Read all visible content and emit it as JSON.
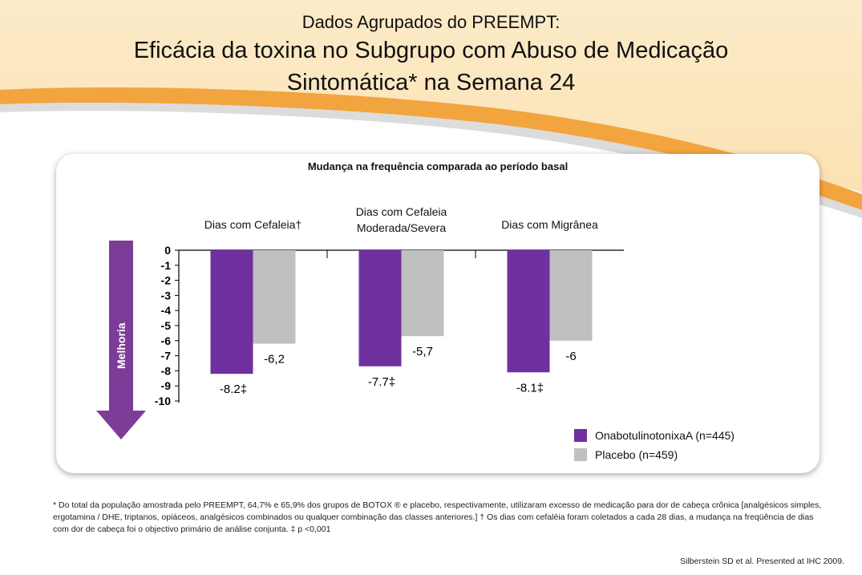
{
  "slide": {
    "pretitle": "Dados Agrupados do PREEMPT:",
    "title_line1": "Eficácia da toxina  no Subgrupo com Abuso de Medicação",
    "title_line2": "Sintomática* na Semana 24",
    "footnote": "* Do total da população amostrada pelo PREEMPT, 64,7% e 65,9% dos grupos de BOTOX ® e placebo, respectivamente, utilizaram excesso de medicação para dor de cabeça crônica [analgésicos simples, ergotamina / DHE, triptanos, opiáceos, analgésicos combinados ou qualquer combinação das classes anteriores.] † Os dias com cefaléia foram coletados a cada 28 dias, a mudança na freqüência de dias com dor de cabeça foi o objectivo primário de análise conjunta. ‡ p <0,001",
    "citation": "Silberstein SD et al. Presented at IHC 2009.",
    "colors": {
      "band_light": "#fce9c6",
      "band_orange": "#f0a33a",
      "band_grey": "#d8d8d8"
    }
  },
  "chart_data": {
    "type": "bar",
    "title": "Mudança na frequência comparada ao período basal",
    "arrow_label": "Melhoria",
    "categories": [
      "Dias com Cefaleia†",
      "Dias com Cefaleia\nModerada/Severa",
      "Dias com Migrânea"
    ],
    "series": [
      {
        "name": "OnabotulinotonixaA  (n=445)",
        "color": "#7030a0",
        "values": [
          -8.2,
          -7.7,
          -8.1
        ],
        "labels": [
          "-8.2‡",
          "-7.7‡",
          "-8.1‡"
        ]
      },
      {
        "name": "Placebo (n=459)",
        "color": "#c0c0c0",
        "values": [
          -6.2,
          -5.7,
          -6.0
        ],
        "labels": [
          "-6,2",
          "-5,7",
          "-6"
        ]
      }
    ],
    "ylim": [
      -10,
      0
    ],
    "yticks": [
      0,
      -1,
      -2,
      -3,
      -4,
      -5,
      -6,
      -7,
      -8,
      -9,
      -10
    ],
    "grid": false,
    "legend_position": "bottom-right",
    "arrow_color": "#7d3c98"
  }
}
